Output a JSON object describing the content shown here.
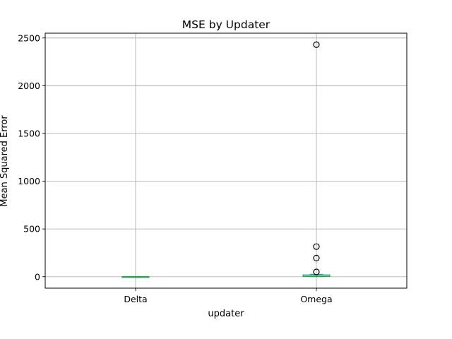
{
  "chart_data": {
    "type": "box",
    "title": "MSE by Updater",
    "xlabel": "updater",
    "ylabel": "Mean Squared Error",
    "categories": [
      "Delta",
      "Omega"
    ],
    "ylim": [
      -120,
      2550
    ],
    "yticks": [
      0,
      500,
      1000,
      1500,
      2000,
      2500
    ],
    "ytick_labels": [
      "0",
      "500",
      "1000",
      "1500",
      "2000",
      "2500"
    ],
    "grid": true,
    "boxes": [
      {
        "category": "Delta",
        "whislo": -2,
        "q1": -1,
        "median": 0,
        "q3": 1,
        "whishi": 2,
        "fliers": []
      },
      {
        "category": "Omega",
        "whislo": 0,
        "q1": 2,
        "median": 7,
        "q3": 20,
        "whishi": 25,
        "fliers": [
          50,
          195,
          315,
          2430
        ]
      }
    ],
    "colors": {
      "box": "#1f9e89",
      "median": "#2ca02c",
      "whisker": "#1f9e89",
      "flier_edge": "#000000",
      "grid": "#b0b0b0"
    }
  }
}
